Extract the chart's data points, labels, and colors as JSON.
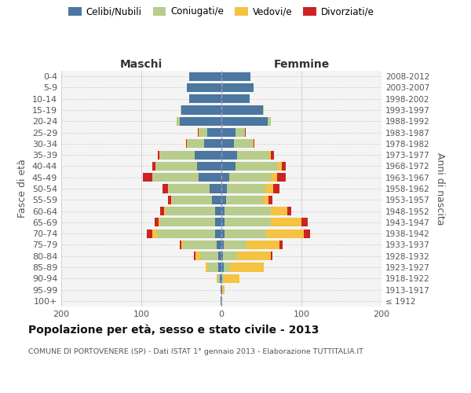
{
  "age_groups": [
    "100+",
    "95-99",
    "90-94",
    "85-89",
    "80-84",
    "75-79",
    "70-74",
    "65-69",
    "60-64",
    "55-59",
    "50-54",
    "45-49",
    "40-44",
    "35-39",
    "30-34",
    "25-29",
    "20-24",
    "15-19",
    "10-14",
    "5-9",
    "0-4"
  ],
  "birth_years": [
    "≤ 1912",
    "1913-1917",
    "1918-1922",
    "1923-1927",
    "1928-1932",
    "1933-1937",
    "1938-1942",
    "1943-1947",
    "1948-1952",
    "1953-1957",
    "1958-1962",
    "1963-1967",
    "1968-1972",
    "1973-1977",
    "1978-1982",
    "1983-1987",
    "1988-1992",
    "1993-1997",
    "1998-2002",
    "2003-2007",
    "2008-2012"
  ],
  "maschi": {
    "celibi": [
      1,
      1,
      2,
      4,
      4,
      6,
      8,
      8,
      8,
      12,
      15,
      28,
      30,
      33,
      22,
      18,
      52,
      50,
      40,
      43,
      40
    ],
    "coniugati": [
      0,
      0,
      3,
      13,
      22,
      42,
      72,
      68,
      62,
      50,
      52,
      58,
      52,
      43,
      20,
      9,
      4,
      1,
      0,
      0,
      0
    ],
    "vedovi": [
      0,
      0,
      1,
      3,
      6,
      2,
      6,
      2,
      2,
      1,
      0,
      0,
      0,
      1,
      1,
      1,
      0,
      0,
      0,
      0,
      0
    ],
    "divorziati": [
      0,
      0,
      0,
      0,
      2,
      2,
      7,
      5,
      4,
      4,
      7,
      12,
      4,
      2,
      1,
      1,
      0,
      0,
      0,
      0,
      0
    ]
  },
  "femmine": {
    "nubili": [
      0,
      1,
      1,
      3,
      2,
      3,
      4,
      4,
      4,
      6,
      7,
      10,
      18,
      20,
      16,
      18,
      58,
      52,
      35,
      40,
      36
    ],
    "coniugate": [
      0,
      0,
      2,
      8,
      18,
      28,
      52,
      58,
      58,
      46,
      48,
      52,
      53,
      40,
      23,
      11,
      4,
      1,
      0,
      0,
      0
    ],
    "vedove": [
      1,
      3,
      20,
      42,
      42,
      42,
      47,
      38,
      20,
      7,
      10,
      8,
      4,
      2,
      1,
      0,
      0,
      0,
      0,
      0,
      0
    ],
    "divorziate": [
      0,
      0,
      0,
      0,
      2,
      3,
      8,
      8,
      5,
      5,
      8,
      10,
      5,
      4,
      1,
      1,
      0,
      0,
      0,
      0,
      0
    ]
  },
  "colors": {
    "celibi": "#4b77a0",
    "coniugati": "#b8cc8c",
    "vedovi": "#f5c242",
    "divorziati": "#cc2222"
  },
  "xlim": 200,
  "title": "Popolazione per età, sesso e stato civile - 2013",
  "subtitle": "COMUNE DI PORTOVENERE (SP) - Dati ISTAT 1° gennaio 2013 - Elaborazione TUTTITALIA.IT",
  "ylabel_left": "Fasce di età",
  "ylabel_right": "Anni di nascita",
  "xlabel_maschi": "Maschi",
  "xlabel_femmine": "Femmine",
  "bg_color": "#f4f4f4"
}
